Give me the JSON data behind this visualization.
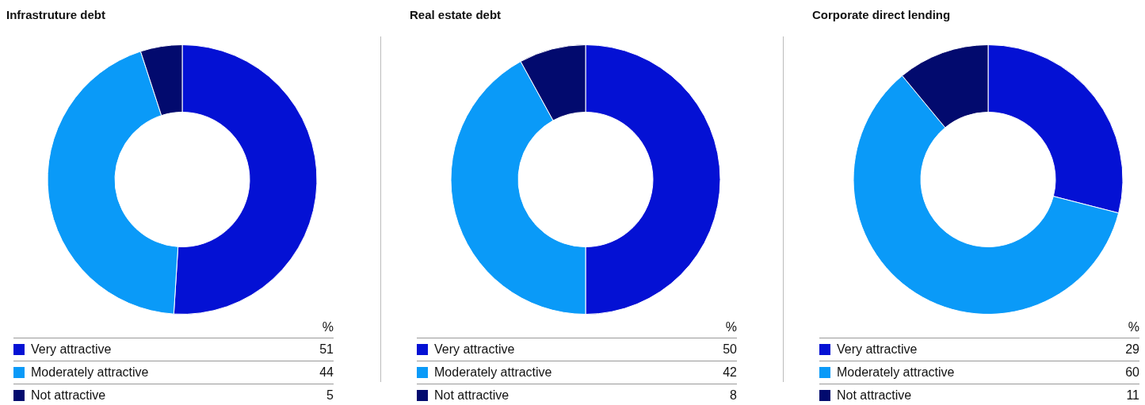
{
  "chart_data": [
    {
      "type": "donut",
      "title": "Infrastruture debt",
      "categories": [
        "Very attractive",
        "Moderately attractive",
        "Not attractive"
      ],
      "values": [
        51,
        44,
        5
      ],
      "colors": [
        "#0411d4",
        "#0a9af8",
        "#020a6e"
      ],
      "data_labels": true,
      "legend": "bottom",
      "annotations": [
        "%"
      ]
    },
    {
      "type": "donut",
      "title": "Real estate debt",
      "categories": [
        "Very attractive",
        "Moderately attractive",
        "Not attractive"
      ],
      "values": [
        50,
        42,
        8
      ],
      "colors": [
        "#0411d4",
        "#0a9af8",
        "#020a6e"
      ],
      "data_labels": true,
      "legend": "bottom",
      "annotations": [
        "%"
      ]
    },
    {
      "type": "donut",
      "title": "Corporate direct lending",
      "categories": [
        "Very attractive",
        "Moderately attractive",
        "Not attractive"
      ],
      "values": [
        29,
        60,
        11
      ],
      "colors": [
        "#0411d4",
        "#0a9af8",
        "#020a6e"
      ],
      "data_labels": true,
      "legend": "bottom",
      "annotations": [
        "%"
      ]
    }
  ]
}
